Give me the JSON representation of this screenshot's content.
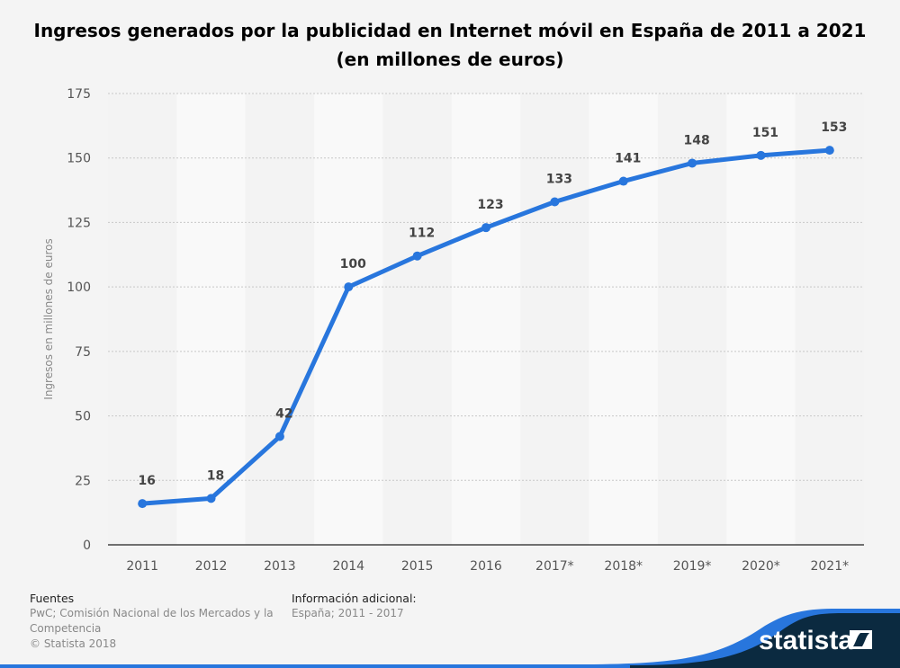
{
  "title": "Ingresos generados por la publicidad en Internet móvil en España de 2011 a 2021 (en millones de euros)",
  "chart_data": {
    "type": "line",
    "title": "Ingresos generados por la publicidad en Internet móvil en España de 2011 a 2021 (en millones de euros)",
    "xlabel": "",
    "ylabel": "Ingresos en millones de euros",
    "categories": [
      "2011",
      "2012",
      "2013",
      "2014",
      "2015",
      "2016",
      "2017*",
      "2018*",
      "2019*",
      "2020*",
      "2021*"
    ],
    "values": [
      16,
      18,
      42,
      100,
      112,
      123,
      133,
      141,
      148,
      151,
      153
    ],
    "ylim": [
      0,
      175
    ],
    "yticks": [
      0,
      25,
      50,
      75,
      100,
      125,
      150,
      175
    ],
    "grid": true,
    "data_labels": true,
    "line_color": "#2876dd"
  },
  "footer": {
    "sources_heading": "Fuentes",
    "sources_text": "PwC; Comisión Nacional de los Mercados y la Competencia",
    "copyright": "© Statista 2018",
    "info_heading": "Información adicional:",
    "info_text": "España; 2011 - 2017"
  },
  "brand": {
    "logo_text": "statista",
    "navy": "#0b2a40",
    "blue": "#2876dd"
  }
}
